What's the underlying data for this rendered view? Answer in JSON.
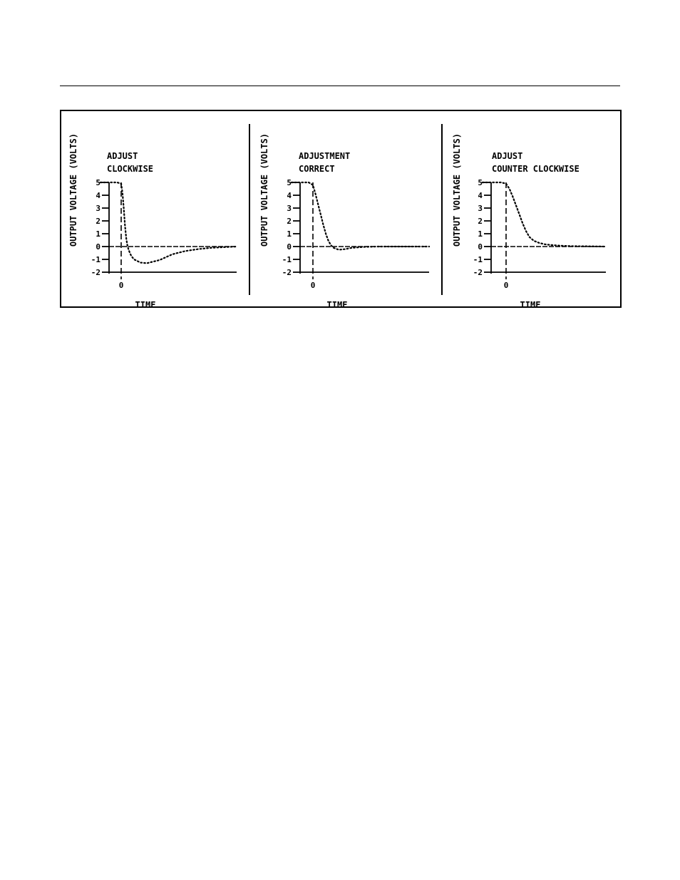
{
  "chart_data": [
    {
      "type": "line",
      "title_lines": [
        "ADJUST",
        "CLOCKWISE"
      ],
      "ylabel": "OUTPUT VOLTAGE (VOLTS)",
      "xlabel": "TIME",
      "xticks": [
        "0"
      ],
      "yticks": [
        "5",
        "4",
        "3",
        "2",
        "1",
        "0",
        "-1",
        "-2"
      ],
      "ylim": [
        -2,
        5
      ],
      "series": [
        {
          "x": [
            -1.0,
            -0.2,
            0.0,
            0.1,
            0.2,
            0.3,
            0.4,
            0.5,
            0.6,
            0.7,
            0.8,
            1.0,
            1.5,
            2.0,
            3.0,
            4.0,
            5.0,
            6.0,
            7.0,
            8.0,
            9.0
          ],
          "y": [
            5,
            5,
            4.9,
            4.2,
            3.0,
            1.6,
            0.6,
            0.0,
            -0.3,
            -0.55,
            -0.75,
            -1.0,
            -1.25,
            -1.3,
            -1.05,
            -0.6,
            -0.35,
            -0.2,
            -0.1,
            -0.05,
            0.0
          ]
        }
      ]
    },
    {
      "type": "line",
      "title_lines": [
        "ADJUSTMENT",
        "CORRECT"
      ],
      "ylabel": "OUTPUT VOLTAGE (VOLTS)",
      "xlabel": "TIME",
      "xticks": [
        "0"
      ],
      "yticks": [
        "5",
        "4",
        "3",
        "2",
        "1",
        "0",
        "-1",
        "-2"
      ],
      "ylim": [
        -2,
        5
      ],
      "series": [
        {
          "x": [
            -1.0,
            -0.2,
            0.0,
            0.2,
            0.4,
            0.6,
            0.8,
            1.0,
            1.2,
            1.4,
            1.6,
            2.0,
            2.5,
            3.0,
            4.0,
            5.0,
            6.0,
            7.0,
            8.0,
            9.0
          ],
          "y": [
            5,
            5,
            4.8,
            4.1,
            3.3,
            2.5,
            1.7,
            1.0,
            0.45,
            0.1,
            -0.1,
            -0.25,
            -0.2,
            -0.1,
            -0.03,
            0.0,
            0.0,
            0.0,
            0.0,
            0.0
          ]
        }
      ]
    },
    {
      "type": "line",
      "title_lines": [
        "ADJUST",
        "COUNTER CLOCKWISE"
      ],
      "ylabel": "OUTPUT VOLTAGE (VOLTS)",
      "xlabel": "TIME",
      "xticks": [
        "0"
      ],
      "yticks": [
        "5",
        "4",
        "3",
        "2",
        "1",
        "0",
        "-1",
        "-2"
      ],
      "ylim": [
        -2,
        5
      ],
      "series": [
        {
          "x": [
            -1.0,
            -0.2,
            0.0,
            0.3,
            0.6,
            0.9,
            1.2,
            1.5,
            1.8,
            2.1,
            2.5,
            3.0,
            3.5,
            4.0,
            5.0,
            6.0,
            7.0,
            8.0,
            9.0
          ],
          "y": [
            5,
            5,
            4.9,
            4.5,
            3.9,
            3.2,
            2.5,
            1.8,
            1.2,
            0.75,
            0.45,
            0.28,
            0.18,
            0.12,
            0.06,
            0.03,
            0.02,
            0.01,
            0.0
          ]
        }
      ]
    }
  ]
}
